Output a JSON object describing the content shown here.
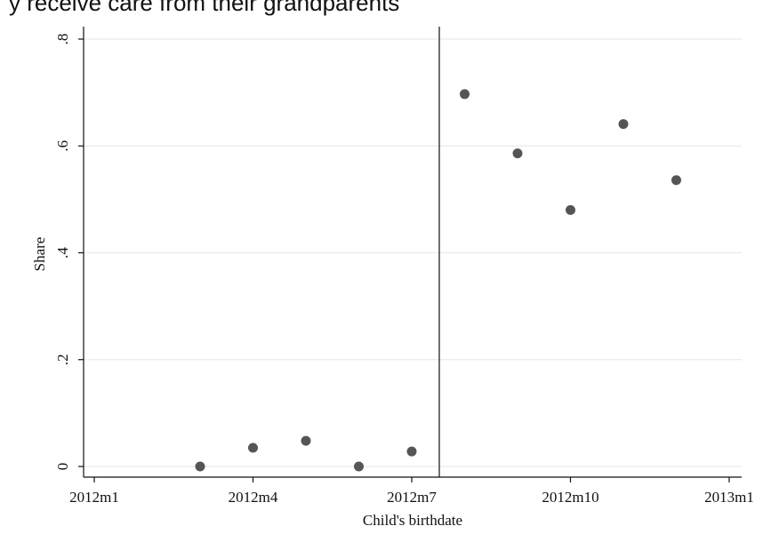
{
  "header_caption": "y receive care from their grandparents",
  "chart_data": {
    "type": "scatter",
    "title": "",
    "xlabel": "Child's birthdate",
    "ylabel": "Share",
    "xlim": [
      "2012m1",
      "2013m1"
    ],
    "ylim": [
      0,
      0.8
    ],
    "grid": "horizontal",
    "legend": "none",
    "x_ticks": [
      "2012m1",
      "2012m4",
      "2012m7",
      "2012m10",
      "2013m1"
    ],
    "y_ticks": [
      "0",
      ".2",
      ".4",
      ".6",
      ".8"
    ],
    "cutoff_line_x": "2012m7 (approx. 1 month after)",
    "points": [
      {
        "x": "2012m3",
        "y": 0.0
      },
      {
        "x": "2012m4",
        "y": 0.035
      },
      {
        "x": "2012m5",
        "y": 0.048
      },
      {
        "x": "2012m6",
        "y": 0.0
      },
      {
        "x": "2012m7",
        "y": 0.028
      },
      {
        "x": "2012m8",
        "y": 0.697
      },
      {
        "x": "2012m9",
        "y": 0.586
      },
      {
        "x": "2012m10",
        "y": 0.48
      },
      {
        "x": "2012m11",
        "y": 0.641
      },
      {
        "x": "2012m12",
        "y": 0.536
      }
    ],
    "colors": {
      "marker": "#555555",
      "axis": "#111111",
      "grid": "#e6e6e6"
    }
  }
}
